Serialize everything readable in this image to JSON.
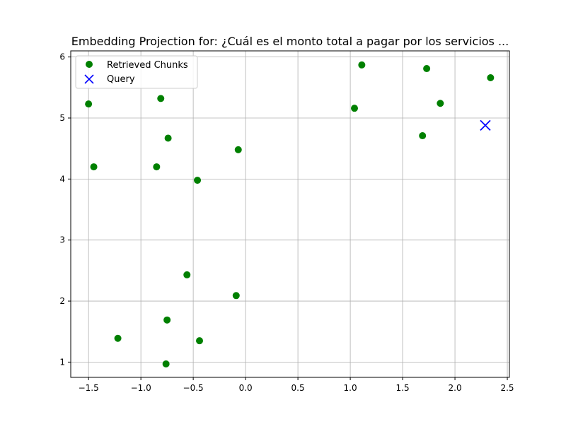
{
  "chart_data": {
    "type": "scatter",
    "title": "Embedding Projection for: ¿Cuál es el monto total a pagar por los servicios ...",
    "xlabel": "",
    "ylabel": "",
    "xlim": [
      -1.67,
      2.52
    ],
    "ylim": [
      0.75,
      6.1
    ],
    "xticks": [
      -1.5,
      -1.0,
      -0.5,
      0.0,
      0.5,
      1.0,
      1.5,
      2.0,
      2.5
    ],
    "xtick_labels": [
      "−1.5",
      "−1.0",
      "−0.5",
      "0.0",
      "0.5",
      "1.0",
      "1.5",
      "2.0",
      "2.5"
    ],
    "yticks": [
      1,
      2,
      3,
      4,
      5,
      6
    ],
    "ytick_labels": [
      "1",
      "2",
      "3",
      "4",
      "5",
      "6"
    ],
    "grid": true,
    "legend_position": "top-left",
    "series": [
      {
        "name": "Retrieved Chunks",
        "marker": "circle",
        "color": "#008000",
        "x": [
          -1.5,
          -0.81,
          -0.74,
          -1.45,
          -0.85,
          -0.46,
          -0.07,
          1.11,
          1.04,
          1.73,
          1.86,
          1.69,
          2.34,
          -0.56,
          -0.09,
          -0.75,
          -1.22,
          -0.44,
          -0.76
        ],
        "y": [
          5.23,
          5.32,
          4.67,
          4.2,
          4.2,
          3.98,
          4.48,
          5.87,
          5.16,
          5.81,
          5.24,
          4.71,
          5.66,
          2.43,
          2.09,
          1.69,
          1.39,
          1.35,
          0.97
        ]
      },
      {
        "name": "Query",
        "marker": "x",
        "color": "#0000ff",
        "x": [
          2.29
        ],
        "y": [
          4.88
        ]
      }
    ]
  }
}
